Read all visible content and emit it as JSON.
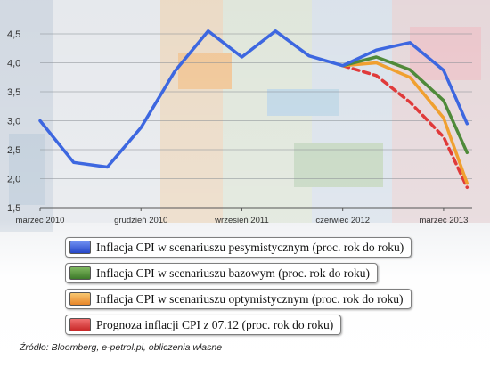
{
  "chart_data": {
    "type": "line",
    "ylim": [
      1.5,
      4.5
    ],
    "yticks": [
      "4,5",
      "4,0",
      "3,5",
      "3,0",
      "2,5",
      "2,0",
      "1,5"
    ],
    "yticks_values": [
      4.5,
      4.0,
      3.5,
      3.0,
      2.5,
      2.0,
      1.5
    ],
    "xtick_labels": [
      "marzec 2010",
      "grudzień 2010",
      "wrzesień 2011",
      "czerwiec 2012",
      "marzec 2013"
    ],
    "xtick_index": [
      0,
      3,
      6,
      9,
      12
    ],
    "x_count": 13,
    "grid": true,
    "series": [
      {
        "name": "Inflacja CPI w scenariuszu pesymistycznym (proc. rok do roku)",
        "color": "#3d67e0",
        "style": "solid",
        "gradient": [
          "#6f8ff0",
          "#2546c7"
        ],
        "x": [
          0,
          1,
          2,
          3,
          4,
          5,
          6,
          7,
          8,
          9,
          10,
          11,
          12
        ],
        "values": [
          3.0,
          2.28,
          2.2,
          2.88,
          3.85,
          4.55,
          4.1,
          4.55,
          4.12,
          3.95,
          4.22,
          4.35,
          3.87
        ]
      },
      {
        "name": "",
        "color": "#3d67e0",
        "style": "solid",
        "x": [
          12,
          12.7
        ],
        "values": [
          3.87,
          2.95
        ]
      },
      {
        "name": "Inflacja CPI w scenariuszu bazowym (proc. rok do roku)",
        "color": "#4f8a3a",
        "style": "solid",
        "gradient": [
          "#7fb85f",
          "#3d7a2a"
        ],
        "x": [
          9,
          10,
          11,
          12,
          12.7
        ],
        "values": [
          3.95,
          4.1,
          3.88,
          3.35,
          2.45
        ]
      },
      {
        "name": "Inflacja CPI w scenariuszu optymistycznym (proc. rok do roku)",
        "color": "#f0a030",
        "style": "solid",
        "gradient": [
          "#f8c870",
          "#e8862a"
        ],
        "x": [
          9,
          10,
          11,
          12,
          12.7
        ],
        "values": [
          3.95,
          4.0,
          3.75,
          3.05,
          1.92
        ]
      },
      {
        "name": "Prognoza inflacji CPI z 07.12 (proc. rok do roku)",
        "color": "#e03a3a",
        "style": "dashed",
        "gradient": [
          "#f07070",
          "#c82828"
        ],
        "x": [
          9,
          10,
          11,
          12,
          12.7
        ],
        "values": [
          3.95,
          3.78,
          3.32,
          2.72,
          1.85
        ]
      }
    ]
  },
  "source": "Źródło: Bloomberg, e-petrol.pl, obliczenia własne"
}
